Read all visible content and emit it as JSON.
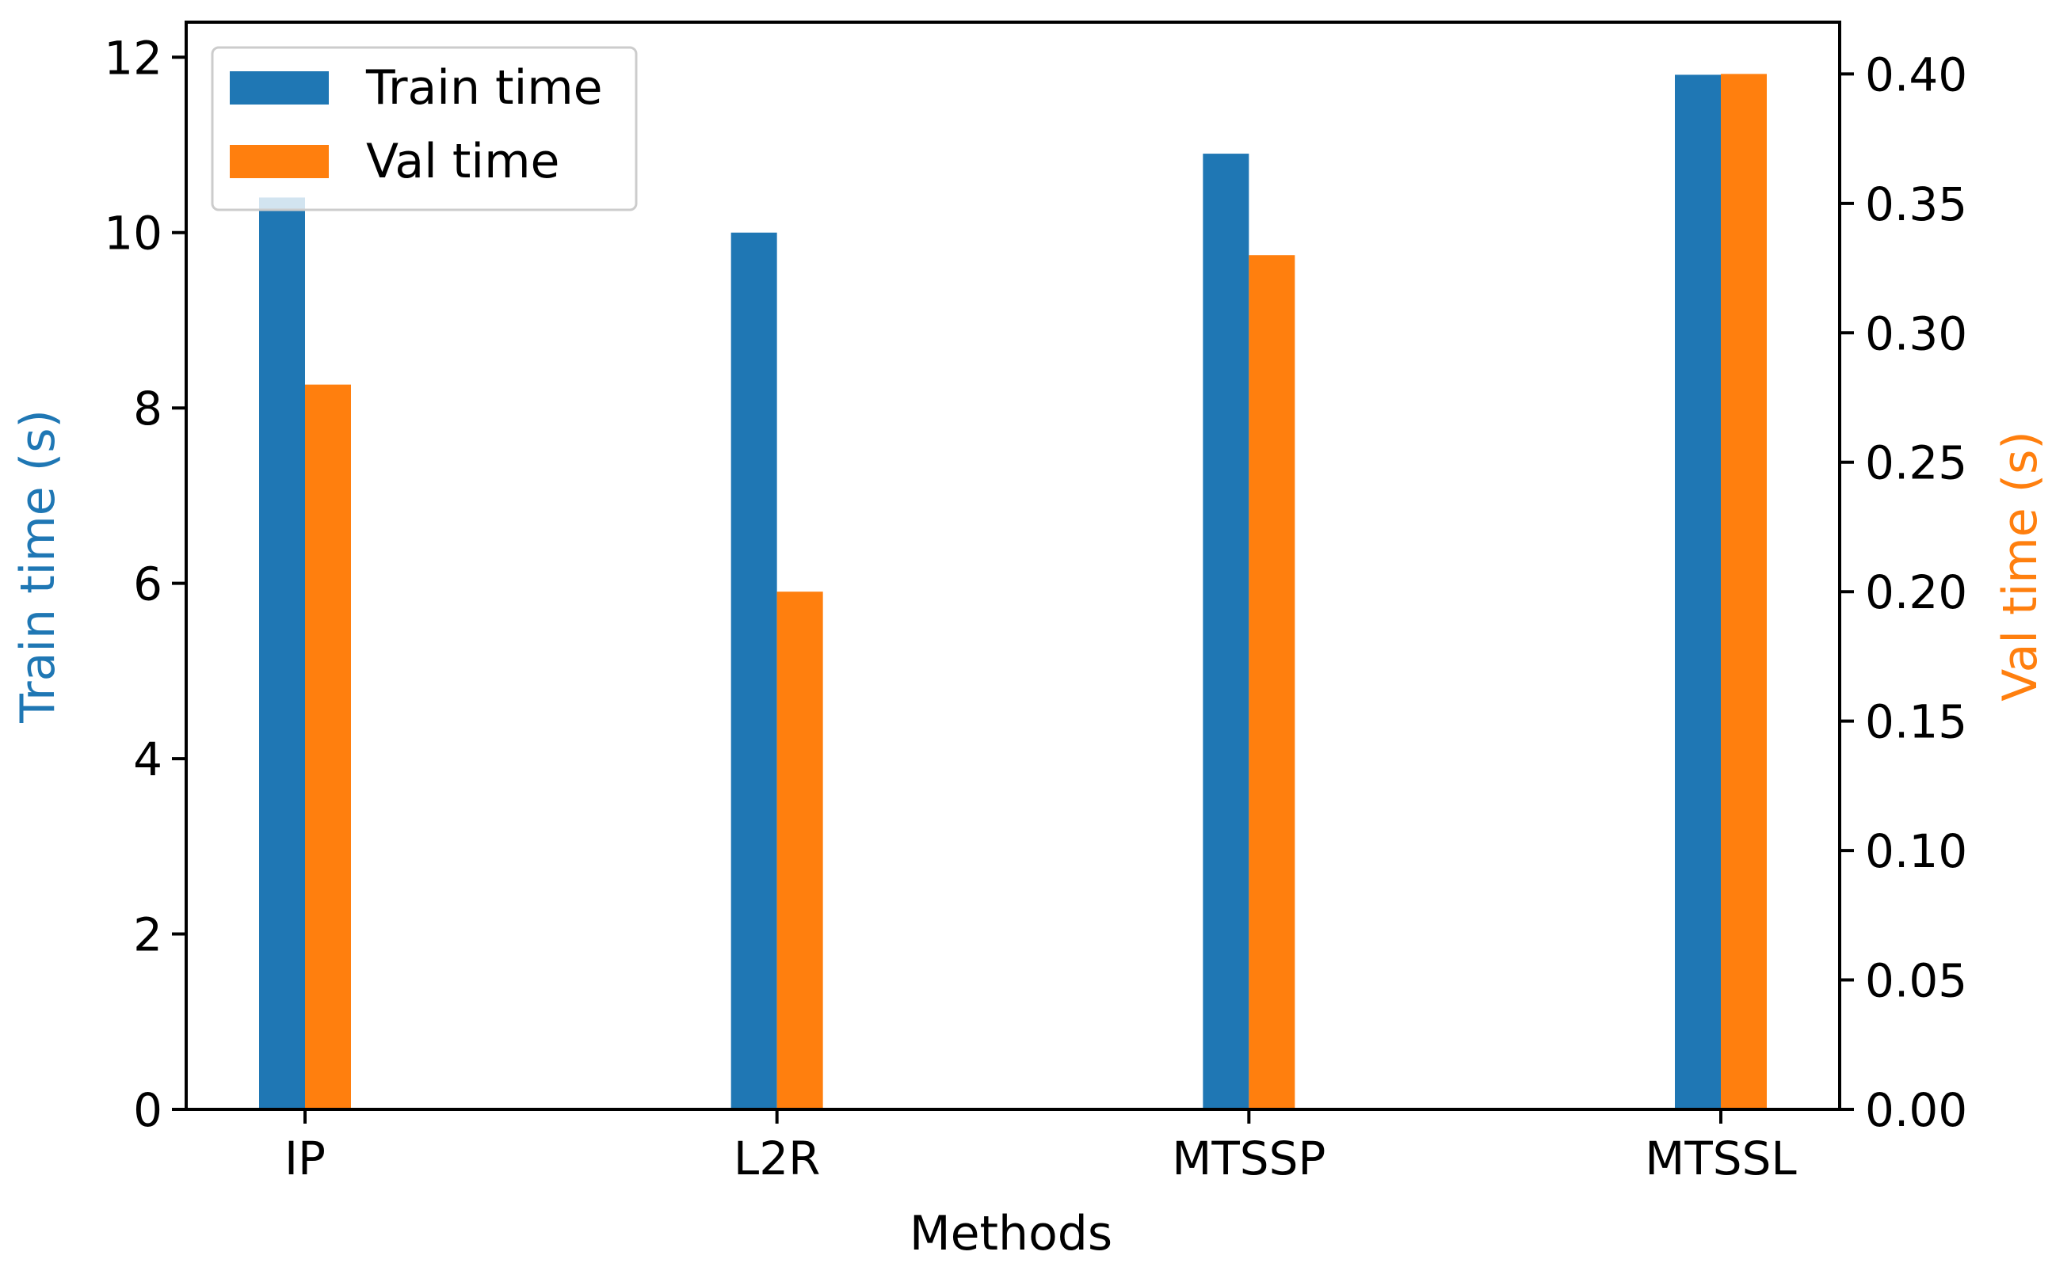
{
  "chart_data": {
    "type": "bar",
    "categories": [
      "IP",
      "L2R",
      "MTSSP",
      "MTSSL"
    ],
    "xlabel": "Methods",
    "series": [
      {
        "name": "Train time",
        "axis": "left",
        "values": [
          10.4,
          10.0,
          10.9,
          11.8
        ],
        "color": "#1f77b4"
      },
      {
        "name": "Val time",
        "axis": "right",
        "values": [
          0.28,
          0.2,
          0.33,
          0.4
        ],
        "color": "#ff7f0e"
      }
    ],
    "left_axis": {
      "label": "Train time (s)",
      "ylim": [
        0,
        12.4
      ],
      "ticks": [
        0,
        2,
        4,
        6,
        8,
        10,
        12
      ],
      "tick_labels": [
        "0",
        "2",
        "4",
        "6",
        "8",
        "10",
        "12"
      ],
      "label_color": "#1f77b4"
    },
    "right_axis": {
      "label": "Val time (s)",
      "ylim": [
        0,
        0.42
      ],
      "ticks": [
        0,
        0.05,
        0.1,
        0.15,
        0.2,
        0.25,
        0.3,
        0.35,
        0.4
      ],
      "tick_labels": [
        "0.00",
        "0.05",
        "0.10",
        "0.15",
        "0.20",
        "0.25",
        "0.30",
        "0.35",
        "0.40"
      ],
      "label_color": "#ff7f0e"
    },
    "legend": {
      "placement": "upper-left",
      "entries": [
        "Train time",
        "Val time"
      ]
    },
    "grid": false
  }
}
